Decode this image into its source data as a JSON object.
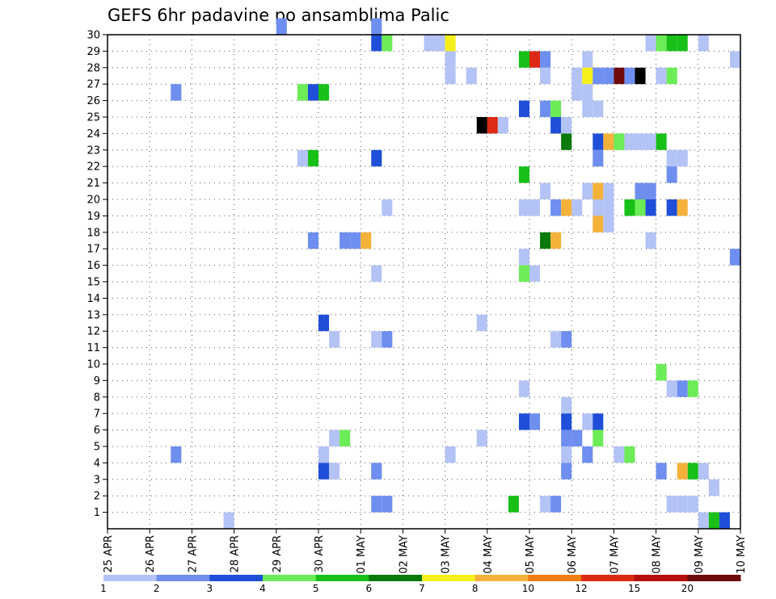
{
  "chart_data": {
    "type": "heatmap",
    "title": "GEFS 6hr padavine po ansamblima Palic",
    "x_tick_labels": [
      "25 APR",
      "26 APR",
      "27 APR",
      "28 APR",
      "29 APR",
      "30 APR",
      "01 MAY",
      "02 MAY",
      "03 MAY",
      "04 MAY",
      "05 MAY",
      "06 MAY",
      "07 MAY",
      "08 MAY",
      "09 MAY",
      "10 MAY"
    ],
    "y_tick_labels": [
      "1",
      "2",
      "3",
      "4",
      "5",
      "6",
      "7",
      "8",
      "9",
      "10",
      "11",
      "12",
      "13",
      "14",
      "15",
      "16",
      "17",
      "18",
      "19",
      "20",
      "21",
      "22",
      "23",
      "24",
      "25",
      "26",
      "27",
      "28",
      "29",
      "30"
    ],
    "xlim": [
      0,
      60
    ],
    "ylim": [
      0,
      30
    ],
    "grid": true,
    "legend": {
      "placement": "bottom",
      "labels": [
        "1",
        "2",
        "3",
        "4",
        "5",
        "6",
        "7",
        "8",
        "10",
        "12",
        "15",
        "20"
      ],
      "colors": [
        "#b4c3f5",
        "#6e8ef0",
        "#1f4fd8",
        "#6cec56",
        "#18c018",
        "#0a7a0a",
        "#f5f01a",
        "#f5b23a",
        "#f07d14",
        "#dc2a14",
        "#b40f0a",
        "#6e0a0a"
      ]
    },
    "cells": [
      [
        16,
        30,
        2
      ],
      [
        25,
        30,
        2
      ],
      [
        25,
        29,
        3
      ],
      [
        26,
        29,
        4
      ],
      [
        30,
        29,
        1
      ],
      [
        31,
        29,
        1
      ],
      [
        32,
        29,
        7
      ],
      [
        51,
        29,
        1
      ],
      [
        52,
        29,
        4
      ],
      [
        53,
        29,
        5
      ],
      [
        54,
        29,
        5
      ],
      [
        56,
        29,
        1
      ],
      [
        32,
        28,
        1
      ],
      [
        39,
        28,
        5
      ],
      [
        40,
        28,
        10
      ],
      [
        41,
        28,
        2
      ],
      [
        45,
        28,
        1
      ],
      [
        59,
        28,
        1
      ],
      [
        32,
        27,
        1
      ],
      [
        34,
        27,
        1
      ],
      [
        41,
        27,
        1
      ],
      [
        44,
        27,
        1
      ],
      [
        45,
        27,
        7
      ],
      [
        46,
        27,
        2
      ],
      [
        47,
        27,
        2
      ],
      [
        48,
        27,
        12
      ],
      [
        49,
        27,
        2
      ],
      [
        50,
        27,
        15
      ],
      [
        52,
        27,
        1
      ],
      [
        53,
        27,
        4
      ],
      [
        6,
        26,
        2
      ],
      [
        18,
        26,
        4
      ],
      [
        19,
        26,
        3
      ],
      [
        20,
        26,
        5
      ],
      [
        44,
        26,
        1
      ],
      [
        45,
        26,
        1
      ],
      [
        39,
        25,
        3
      ],
      [
        41,
        25,
        2
      ],
      [
        42,
        25,
        4
      ],
      [
        45,
        25,
        1
      ],
      [
        46,
        25,
        1
      ],
      [
        35,
        24,
        15
      ],
      [
        36,
        24,
        10
      ],
      [
        37,
        24,
        1
      ],
      [
        42,
        24,
        3
      ],
      [
        43,
        24,
        1
      ],
      [
        43,
        23,
        6
      ],
      [
        46,
        23,
        3
      ],
      [
        47,
        23,
        8
      ],
      [
        48,
        23,
        4
      ],
      [
        49,
        23,
        1
      ],
      [
        50,
        23,
        1
      ],
      [
        51,
        23,
        1
      ],
      [
        52,
        23,
        5
      ],
      [
        18,
        22,
        1
      ],
      [
        19,
        22,
        5
      ],
      [
        25,
        22,
        3
      ],
      [
        46,
        22,
        2
      ],
      [
        53,
        22,
        1
      ],
      [
        54,
        22,
        1
      ],
      [
        39,
        21,
        5
      ],
      [
        53,
        21,
        2
      ],
      [
        41,
        20,
        1
      ],
      [
        45,
        20,
        1
      ],
      [
        46,
        20,
        8
      ],
      [
        47,
        20,
        1
      ],
      [
        50,
        20,
        2
      ],
      [
        51,
        20,
        2
      ],
      [
        26,
        19,
        1
      ],
      [
        39,
        19,
        1
      ],
      [
        40,
        19,
        1
      ],
      [
        42,
        19,
        2
      ],
      [
        43,
        19,
        8
      ],
      [
        44,
        19,
        1
      ],
      [
        46,
        19,
        1
      ],
      [
        47,
        19,
        1
      ],
      [
        49,
        19,
        5
      ],
      [
        50,
        19,
        4
      ],
      [
        51,
        19,
        3
      ],
      [
        53,
        19,
        3
      ],
      [
        54,
        19,
        8
      ],
      [
        46,
        18,
        8
      ],
      [
        47,
        18,
        1
      ],
      [
        19,
        17,
        2
      ],
      [
        22,
        17,
        2
      ],
      [
        23,
        17,
        2
      ],
      [
        24,
        17,
        8
      ],
      [
        41,
        17,
        6
      ],
      [
        42,
        17,
        8
      ],
      [
        51,
        17,
        1
      ],
      [
        60,
        17,
        4
      ],
      [
        39,
        16,
        1
      ],
      [
        59,
        16,
        2
      ],
      [
        25,
        15,
        1
      ],
      [
        39,
        15,
        4
      ],
      [
        40,
        15,
        1
      ],
      [
        60,
        14,
        2
      ],
      [
        20,
        12,
        3
      ],
      [
        35,
        12,
        1
      ],
      [
        21,
        11,
        1
      ],
      [
        25,
        11,
        1
      ],
      [
        26,
        11,
        2
      ],
      [
        42,
        11,
        1
      ],
      [
        43,
        11,
        2
      ],
      [
        52,
        9,
        4
      ],
      [
        39,
        8,
        1
      ],
      [
        53,
        8,
        1
      ],
      [
        54,
        8,
        2
      ],
      [
        55,
        8,
        4
      ],
      [
        60,
        8,
        4
      ],
      [
        43,
        7,
        1
      ],
      [
        60,
        7,
        1
      ],
      [
        39,
        6,
        3
      ],
      [
        40,
        6,
        2
      ],
      [
        43,
        6,
        3
      ],
      [
        45,
        6,
        1
      ],
      [
        46,
        6,
        3
      ],
      [
        21,
        5,
        1
      ],
      [
        22,
        5,
        4
      ],
      [
        35,
        5,
        1
      ],
      [
        43,
        5,
        2
      ],
      [
        44,
        5,
        2
      ],
      [
        46,
        5,
        4
      ],
      [
        6,
        4,
        2
      ],
      [
        20,
        4,
        1
      ],
      [
        32,
        4,
        1
      ],
      [
        43,
        4,
        1
      ],
      [
        45,
        4,
        2
      ],
      [
        48,
        4,
        1
      ],
      [
        49,
        4,
        4
      ],
      [
        20,
        3,
        3
      ],
      [
        21,
        3,
        1
      ],
      [
        25,
        3,
        2
      ],
      [
        43,
        3,
        2
      ],
      [
        52,
        3,
        2
      ],
      [
        54,
        3,
        8
      ],
      [
        55,
        3,
        5
      ],
      [
        56,
        3,
        1
      ],
      [
        57,
        2,
        1
      ],
      [
        25,
        1,
        2
      ],
      [
        26,
        1,
        2
      ],
      [
        38,
        1,
        5
      ],
      [
        41,
        1,
        1
      ],
      [
        42,
        1,
        2
      ],
      [
        53,
        1,
        1
      ],
      [
        54,
        1,
        1
      ],
      [
        55,
        1,
        1
      ],
      [
        11,
        0,
        1
      ],
      [
        56,
        0,
        1
      ],
      [
        57,
        0,
        5
      ],
      [
        58,
        0,
        3
      ],
      [
        60,
        0,
        2
      ]
    ]
  }
}
